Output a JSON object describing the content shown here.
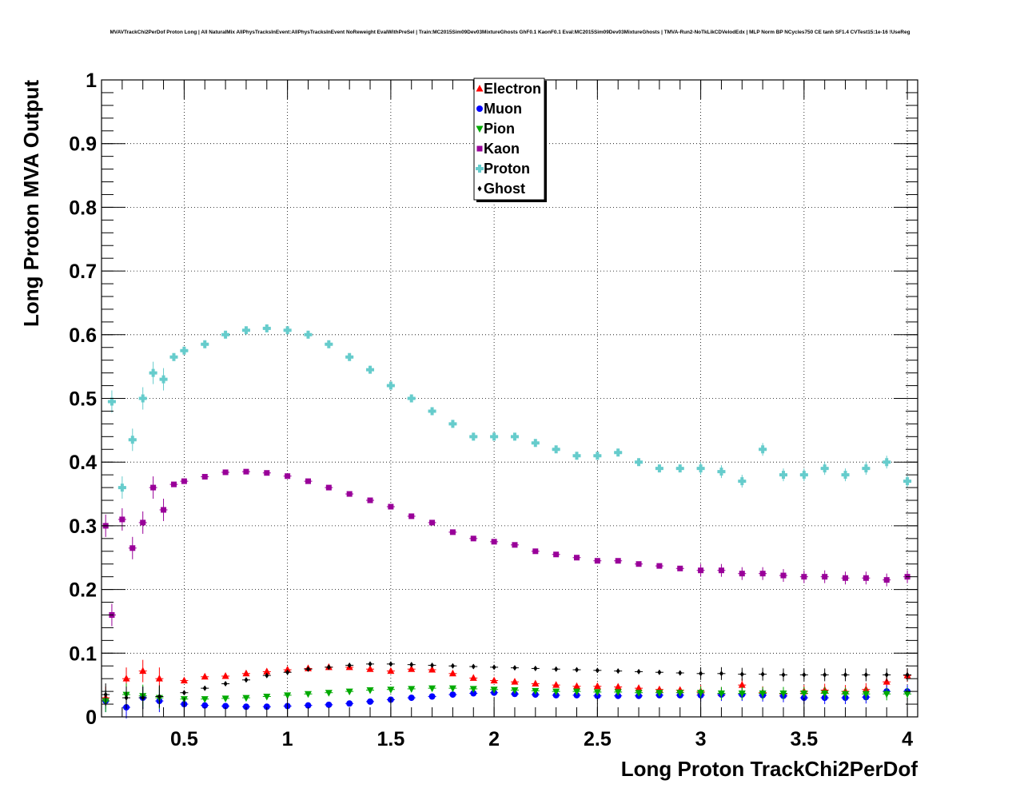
{
  "chart_data": {
    "type": "scatter",
    "title": "MVAVTrackChi2PerDof Proton Long | All NaturalMix AllPhysTracksInEvent:AllPhysTracksInEvent NoReweight EvalWithPreSel | Train:MC2015Sim09Dev03MixtureGhosts GhF0.1 KaonF0.1 Eval:MC2015Sim09Dev03MixtureGhosts | TMVA-Run2-NoTkLikCDVelodEdx | MLP Norm BP NCycles750 CE tanh SF1.4 CVTest15:1e-16 !UseReg",
    "xlabel": "Long Proton TrackChi2PerDof",
    "ylabel": "Long Proton MVA Output",
    "xlim": [
      0.1,
      4.05
    ],
    "ylim": [
      0,
      1
    ],
    "x_ticks": [
      "0.5",
      "1",
      "1.5",
      "2",
      "2.5",
      "3",
      "3.5",
      "4"
    ],
    "y_ticks": [
      "0",
      "0.1",
      "0.2",
      "0.3",
      "0.4",
      "0.5",
      "0.6",
      "0.7",
      "0.8",
      "0.9",
      "1"
    ],
    "grid": true,
    "legend_position": "top-center",
    "series": [
      {
        "name": "Electron",
        "color": "#ff0000",
        "marker": "triangle-up",
        "x": [
          0.12,
          0.22,
          0.3,
          0.38,
          0.5,
          0.6,
          0.7,
          0.8,
          0.9,
          1.0,
          1.1,
          1.2,
          1.3,
          1.4,
          1.5,
          1.6,
          1.7,
          1.8,
          1.9,
          2.0,
          2.1,
          2.2,
          2.3,
          2.4,
          2.5,
          2.6,
          2.7,
          2.8,
          2.9,
          3.0,
          3.1,
          3.2,
          3.3,
          3.4,
          3.5,
          3.6,
          3.7,
          3.8,
          3.9,
          4.0
        ],
        "y": [
          0.03,
          0.06,
          0.072,
          0.06,
          0.057,
          0.063,
          0.064,
          0.068,
          0.071,
          0.074,
          0.076,
          0.078,
          0.078,
          0.075,
          0.072,
          0.075,
          0.074,
          0.068,
          0.061,
          0.057,
          0.055,
          0.052,
          0.05,
          0.048,
          0.048,
          0.047,
          0.045,
          0.043,
          0.042,
          0.04,
          0.037,
          0.05,
          0.038,
          0.036,
          0.04,
          0.042,
          0.04,
          0.043,
          0.055,
          0.065
        ]
      },
      {
        "name": "Muon",
        "color": "#0000ff",
        "marker": "circle",
        "x": [
          0.12,
          0.22,
          0.3,
          0.38,
          0.5,
          0.6,
          0.7,
          0.8,
          0.9,
          1.0,
          1.1,
          1.2,
          1.3,
          1.4,
          1.5,
          1.6,
          1.7,
          1.8,
          1.9,
          2.0,
          2.1,
          2.2,
          2.3,
          2.4,
          2.5,
          2.6,
          2.7,
          2.8,
          2.9,
          3.0,
          3.1,
          3.2,
          3.3,
          3.4,
          3.5,
          3.6,
          3.7,
          3.8,
          3.9,
          4.0
        ],
        "y": [
          0.025,
          0.015,
          0.03,
          0.025,
          0.02,
          0.018,
          0.017,
          0.016,
          0.016,
          0.017,
          0.018,
          0.019,
          0.021,
          0.024,
          0.027,
          0.03,
          0.032,
          0.035,
          0.037,
          0.038,
          0.036,
          0.035,
          0.034,
          0.034,
          0.033,
          0.033,
          0.033,
          0.034,
          0.034,
          0.034,
          0.035,
          0.035,
          0.034,
          0.033,
          0.03,
          0.03,
          0.03,
          0.031,
          0.04,
          0.04
        ]
      },
      {
        "name": "Pion",
        "color": "#00aa00",
        "marker": "triangle-down",
        "x": [
          0.12,
          0.22,
          0.3,
          0.38,
          0.5,
          0.6,
          0.7,
          0.8,
          0.9,
          1.0,
          1.1,
          1.2,
          1.3,
          1.4,
          1.5,
          1.6,
          1.7,
          1.8,
          1.9,
          2.0,
          2.1,
          2.2,
          2.3,
          2.4,
          2.5,
          2.6,
          2.7,
          2.8,
          2.9,
          3.0,
          3.1,
          3.2,
          3.3,
          3.4,
          3.5,
          3.6,
          3.7,
          3.8,
          3.9,
          4.0
        ],
        "y": [
          0.025,
          0.035,
          0.033,
          0.03,
          0.028,
          0.028,
          0.029,
          0.03,
          0.032,
          0.034,
          0.036,
          0.038,
          0.04,
          0.042,
          0.043,
          0.044,
          0.045,
          0.045,
          0.044,
          0.043,
          0.042,
          0.041,
          0.04,
          0.04,
          0.039,
          0.039,
          0.038,
          0.038,
          0.038,
          0.038,
          0.037,
          0.037,
          0.037,
          0.037,
          0.037,
          0.037,
          0.036,
          0.036,
          0.036,
          0.036
        ]
      },
      {
        "name": "Kaon",
        "color": "#990099",
        "marker": "square",
        "x": [
          0.12,
          0.15,
          0.2,
          0.25,
          0.3,
          0.35,
          0.4,
          0.45,
          0.5,
          0.6,
          0.7,
          0.8,
          0.9,
          1.0,
          1.1,
          1.2,
          1.3,
          1.4,
          1.5,
          1.6,
          1.7,
          1.8,
          1.9,
          2.0,
          2.1,
          2.2,
          2.3,
          2.4,
          2.5,
          2.6,
          2.7,
          2.8,
          2.9,
          3.0,
          3.1,
          3.2,
          3.3,
          3.4,
          3.5,
          3.6,
          3.7,
          3.8,
          3.9,
          4.0
        ],
        "y": [
          0.3,
          0.16,
          0.31,
          0.265,
          0.305,
          0.36,
          0.325,
          0.365,
          0.37,
          0.377,
          0.384,
          0.385,
          0.383,
          0.378,
          0.37,
          0.36,
          0.35,
          0.34,
          0.33,
          0.315,
          0.305,
          0.29,
          0.28,
          0.275,
          0.27,
          0.26,
          0.255,
          0.25,
          0.245,
          0.245,
          0.24,
          0.237,
          0.233,
          0.23,
          0.23,
          0.225,
          0.225,
          0.222,
          0.22,
          0.22,
          0.218,
          0.218,
          0.215,
          0.22
        ]
      },
      {
        "name": "Proton",
        "color": "#66cccc",
        "marker": "cross",
        "x": [
          0.15,
          0.2,
          0.25,
          0.3,
          0.35,
          0.4,
          0.45,
          0.5,
          0.6,
          0.7,
          0.8,
          0.9,
          1.0,
          1.1,
          1.2,
          1.3,
          1.4,
          1.5,
          1.6,
          1.7,
          1.8,
          1.9,
          2.0,
          2.1,
          2.2,
          2.3,
          2.4,
          2.5,
          2.6,
          2.7,
          2.8,
          2.9,
          3.0,
          3.1,
          3.2,
          3.3,
          3.4,
          3.5,
          3.6,
          3.7,
          3.8,
          3.9,
          4.0
        ],
        "y": [
          0.495,
          0.36,
          0.435,
          0.5,
          0.54,
          0.53,
          0.565,
          0.575,
          0.585,
          0.6,
          0.607,
          0.61,
          0.607,
          0.6,
          0.585,
          0.565,
          0.545,
          0.52,
          0.5,
          0.48,
          0.46,
          0.44,
          0.44,
          0.44,
          0.43,
          0.42,
          0.41,
          0.41,
          0.415,
          0.4,
          0.39,
          0.39,
          0.39,
          0.385,
          0.37,
          0.42,
          0.38,
          0.38,
          0.39,
          0.38,
          0.39,
          0.4,
          0.37
        ]
      },
      {
        "name": "Ghost",
        "color": "#000000",
        "marker": "diamond",
        "x": [
          0.12,
          0.22,
          0.3,
          0.38,
          0.5,
          0.6,
          0.7,
          0.8,
          0.9,
          1.0,
          1.1,
          1.2,
          1.3,
          1.4,
          1.5,
          1.6,
          1.7,
          1.8,
          1.9,
          2.0,
          2.1,
          2.2,
          2.3,
          2.4,
          2.5,
          2.6,
          2.7,
          2.8,
          2.9,
          3.0,
          3.1,
          3.2,
          3.3,
          3.4,
          3.5,
          3.6,
          3.7,
          3.8,
          3.9,
          4.0
        ],
        "y": [
          0.035,
          0.03,
          0.03,
          0.032,
          0.038,
          0.045,
          0.052,
          0.058,
          0.065,
          0.07,
          0.075,
          0.078,
          0.081,
          0.083,
          0.083,
          0.082,
          0.081,
          0.08,
          0.079,
          0.078,
          0.077,
          0.076,
          0.075,
          0.074,
          0.073,
          0.072,
          0.071,
          0.07,
          0.069,
          0.068,
          0.068,
          0.067,
          0.067,
          0.066,
          0.066,
          0.066,
          0.066,
          0.066,
          0.066,
          0.066
        ]
      }
    ]
  }
}
